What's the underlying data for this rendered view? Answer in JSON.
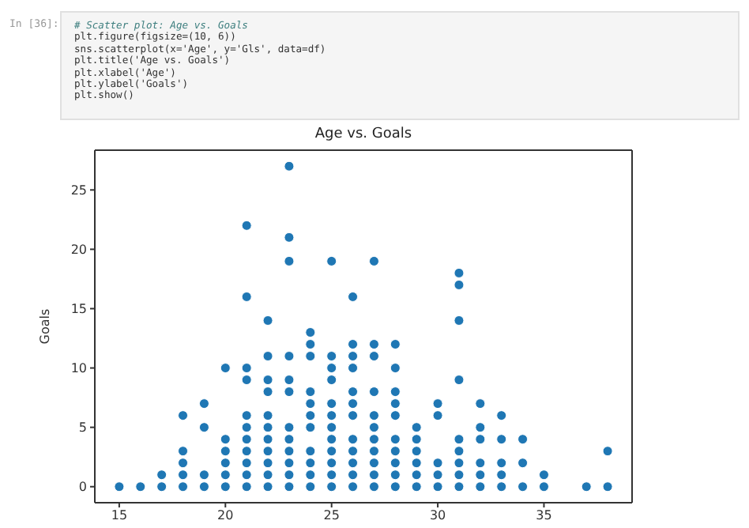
{
  "chart_data": {
    "type": "scatter",
    "title": "Age vs. Goals",
    "ylabel": "Goals",
    "annotations": [
      "In [36]:",
      "# Scatter plot: Age vs. Goals",
      "plt.figure(figsize=(10, 6))",
      "sns.scatterplot(x='Age', y='Gls', data=df)",
      "plt.title('Age vs. Goals')",
      "plt.xlabel('Age')",
      "plt.ylabel('Goals')",
      "plt.show()"
    ],
    "xlim": [
      13.85,
      39.15
    ],
    "xticks": [
      15,
      20,
      25,
      30,
      35
    ],
    "ylim": [
      -1.35,
      28.35
    ],
    "yticks": [
      0,
      5,
      10,
      15,
      20,
      25
    ],
    "grid": false,
    "legend": false,
    "marker": "circle",
    "series": [
      {
        "color": "#1f77b4",
        "x": [
          15,
          16,
          17,
          17,
          18,
          18,
          18,
          18,
          18,
          19,
          19,
          19,
          19,
          20,
          20,
          20,
          20,
          20,
          20,
          21,
          21,
          21,
          21,
          21,
          21,
          21,
          21,
          21,
          21,
          21,
          22,
          22,
          22,
          22,
          22,
          22,
          22,
          22,
          22,
          22,
          22,
          23,
          23,
          23,
          23,
          23,
          23,
          23,
          23,
          23,
          23,
          23,
          23,
          24,
          24,
          24,
          24,
          24,
          24,
          24,
          24,
          24,
          24,
          24,
          25,
          25,
          25,
          25,
          25,
          25,
          25,
          25,
          25,
          25,
          25,
          25,
          26,
          26,
          26,
          26,
          26,
          26,
          26,
          26,
          26,
          26,
          26,
          26,
          27,
          27,
          27,
          27,
          27,
          27,
          27,
          27,
          27,
          27,
          27,
          28,
          28,
          28,
          28,
          28,
          28,
          28,
          28,
          28,
          28,
          29,
          29,
          29,
          29,
          29,
          29,
          30,
          30,
          30,
          30,
          30,
          31,
          31,
          31,
          31,
          31,
          31,
          31,
          31,
          31,
          32,
          32,
          32,
          32,
          32,
          32,
          33,
          33,
          33,
          33,
          33,
          34,
          34,
          34,
          35,
          35,
          37,
          38,
          38
        ],
        "values": [
          0,
          0,
          0,
          1,
          0,
          1,
          2,
          3,
          6,
          0,
          1,
          5,
          7,
          0,
          1,
          2,
          3,
          4,
          10,
          0,
          1,
          2,
          3,
          4,
          5,
          6,
          9,
          10,
          16,
          22,
          0,
          1,
          2,
          3,
          4,
          5,
          6,
          8,
          9,
          11,
          14,
          0,
          1,
          2,
          3,
          4,
          5,
          8,
          9,
          11,
          19,
          21,
          27,
          0,
          1,
          2,
          3,
          5,
          6,
          7,
          8,
          11,
          12,
          13,
          0,
          1,
          2,
          3,
          4,
          5,
          6,
          7,
          9,
          10,
          11,
          19,
          0,
          1,
          2,
          3,
          4,
          6,
          7,
          8,
          10,
          11,
          12,
          16,
          0,
          1,
          2,
          3,
          4,
          5,
          6,
          8,
          11,
          12,
          19,
          0,
          1,
          2,
          3,
          4,
          6,
          7,
          8,
          10,
          12,
          0,
          1,
          2,
          3,
          4,
          5,
          0,
          1,
          2,
          6,
          7,
          0,
          1,
          2,
          3,
          4,
          9,
          14,
          17,
          18,
          0,
          1,
          2,
          4,
          5,
          7,
          0,
          1,
          2,
          4,
          6,
          0,
          2,
          4,
          0,
          1,
          0,
          0,
          3
        ]
      }
    ]
  }
}
